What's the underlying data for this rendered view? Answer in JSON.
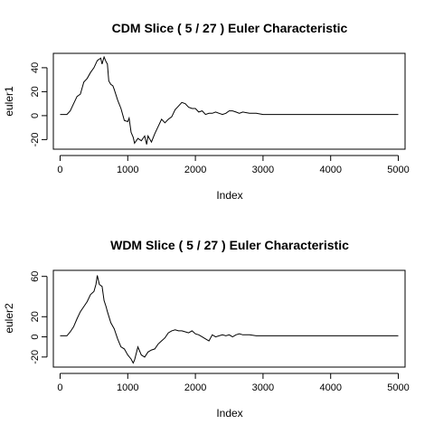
{
  "chart_data": [
    {
      "type": "line",
      "title": "CDM Slice ( 5 / 27 ) Euler Characteristic",
      "xlabel": "Index",
      "ylabel": "euler1",
      "xlim": [
        -100,
        5100
      ],
      "ylim": [
        -28,
        52
      ],
      "x_ticks": [
        0,
        1000,
        2000,
        3000,
        4000,
        5000
      ],
      "y_ticks": [
        -20,
        0,
        20,
        40
      ],
      "grid": false,
      "legend": "none",
      "series": [
        {
          "x": [
            0,
            100,
            150,
            200,
            250,
            300,
            350,
            400,
            450,
            500,
            550,
            600,
            620,
            650,
            680,
            700,
            720,
            750,
            780,
            800,
            850,
            900,
            950,
            1000,
            1020,
            1050,
            1080,
            1100,
            1150,
            1200,
            1250,
            1280,
            1300,
            1350,
            1400,
            1450,
            1500,
            1550,
            1600,
            1650,
            1700,
            1750,
            1800,
            1850,
            1900,
            1950,
            2000,
            2050,
            2100,
            2150,
            2200,
            2250,
            2300,
            2350,
            2400,
            2450,
            2500,
            2550,
            2600,
            2650,
            2700,
            2800,
            2900,
            3000,
            3500,
            4000,
            4500,
            5000
          ],
          "y": [
            1,
            1,
            4,
            10,
            16,
            18,
            28,
            31,
            36,
            40,
            46,
            48,
            43,
            49,
            45,
            43,
            29,
            26,
            25,
            22,
            13,
            6,
            -4,
            -5,
            -2,
            -14,
            -18,
            -23,
            -19,
            -21,
            -17,
            -24,
            -17,
            -22,
            -15,
            -9,
            -3,
            -6,
            -3,
            -1,
            5,
            8,
            11,
            10,
            7,
            6,
            6,
            3,
            4,
            1,
            2,
            2,
            3,
            2,
            1,
            2,
            4,
            4,
            3,
            2,
            3,
            2,
            2,
            1,
            1,
            1,
            1,
            1
          ]
        }
      ]
    },
    {
      "type": "line",
      "title": "WDM Slice ( 5 / 27 ) Euler Characteristic",
      "xlabel": "Index",
      "ylabel": "euler2",
      "xlim": [
        -100,
        5100
      ],
      "ylim": [
        -30,
        66
      ],
      "x_ticks": [
        0,
        1000,
        2000,
        3000,
        4000,
        5000
      ],
      "y_ticks": [
        -20,
        0,
        20,
        60
      ],
      "grid": false,
      "legend": "none",
      "series": [
        {
          "x": [
            0,
            100,
            150,
            200,
            250,
            300,
            350,
            400,
            450,
            500,
            530,
            550,
            580,
            620,
            650,
            680,
            700,
            750,
            800,
            850,
            900,
            950,
            1000,
            1050,
            1080,
            1100,
            1150,
            1200,
            1250,
            1300,
            1350,
            1400,
            1450,
            1500,
            1550,
            1600,
            1650,
            1700,
            1750,
            1800,
            1850,
            1900,
            1950,
            2000,
            2050,
            2100,
            2150,
            2200,
            2250,
            2300,
            2350,
            2400,
            2450,
            2500,
            2550,
            2600,
            2650,
            2700,
            2800,
            2900,
            3000,
            3500,
            4000,
            4500,
            5000
          ],
          "y": [
            1,
            1,
            5,
            10,
            18,
            25,
            30,
            35,
            42,
            45,
            52,
            61,
            52,
            50,
            36,
            30,
            25,
            14,
            8,
            -2,
            -10,
            -12,
            -18,
            -22,
            -26,
            -23,
            -10,
            -18,
            -20,
            -15,
            -13,
            -12,
            -7,
            -4,
            -1,
            4,
            6,
            7,
            6,
            6,
            5,
            4,
            6,
            3,
            2,
            0,
            -2,
            -4,
            2,
            0,
            1,
            2,
            1,
            2,
            0,
            2,
            3,
            2,
            2,
            1,
            1,
            1,
            1,
            1,
            1
          ]
        }
      ]
    }
  ]
}
